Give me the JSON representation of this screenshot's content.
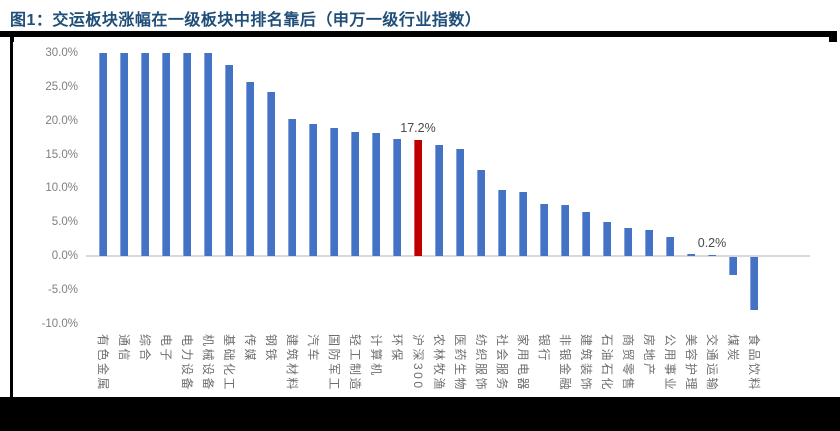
{
  "title": "图1：交运板块涨幅在一级板块中排名靠后（申万一级行业指数）",
  "colors": {
    "title": "#1F4E79",
    "rule": "#000000",
    "bar": "#4472C4",
    "highlight": "#C00000",
    "axis_text": "#7F7F7F",
    "category_text": "#6F6F6F",
    "annotation_text": "#4A4A4A",
    "baseline": "#D9D9D9",
    "background": "#FFFFFF"
  },
  "chart_data": {
    "type": "bar",
    "title": "图1：交运板块涨幅在一级板块中排名靠后（申万一级行业指数）",
    "xlabel": "",
    "ylabel": "",
    "grid": false,
    "legend": false,
    "categories": [
      "有色金属",
      "通信",
      "综合",
      "电子",
      "电力设备",
      "机械设备",
      "基础化工",
      "传媒",
      "钢铁",
      "建筑材料",
      "汽车",
      "国防军工",
      "轻工制造",
      "计算机",
      "环保",
      "沪深300",
      "农林牧渔",
      "医药生物",
      "纺织服饰",
      "社会服务",
      "家用电器",
      "银行",
      "非银金融",
      "建筑装饰",
      "石油石化",
      "商贸零售",
      "房地产",
      "公用事业",
      "美容护理",
      "交通运输",
      "煤炭",
      "食品饮料"
    ],
    "values": [
      30.0,
      30.0,
      30.0,
      30.0,
      30.0,
      30.0,
      28.2,
      25.8,
      24.2,
      20.3,
      19.6,
      18.9,
      18.4,
      18.2,
      17.3,
      17.2,
      16.5,
      15.8,
      12.7,
      9.8,
      9.5,
      7.7,
      7.6,
      6.5,
      5.1,
      4.1,
      3.9,
      2.8,
      0.3,
      0.2,
      -2.7,
      -7.8
    ],
    "values_unit": "%",
    "values_capped_at_axis_max": [
      "有色金属",
      "通信",
      "综合",
      "电子",
      "电力设备",
      "机械设备"
    ],
    "highlight_category": "沪深300",
    "annotations": [
      {
        "category": "沪深300",
        "text": "17.2%"
      },
      {
        "category": "交通运输",
        "text": "0.2%"
      }
    ],
    "y_axis": {
      "min": -10,
      "max": 30,
      "step": 5,
      "ticks": [
        {
          "value": 30,
          "label": "30.0%"
        },
        {
          "value": 25,
          "label": "25.0%"
        },
        {
          "value": 20,
          "label": "20.0%"
        },
        {
          "value": 15,
          "label": "15.0%"
        },
        {
          "value": 10,
          "label": "10.0%"
        },
        {
          "value": 5,
          "label": "5.0%"
        },
        {
          "value": 0,
          "label": "0.0%"
        },
        {
          "value": -5,
          "label": "-5.0%"
        },
        {
          "value": -10,
          "label": "-10.0%"
        }
      ]
    }
  }
}
